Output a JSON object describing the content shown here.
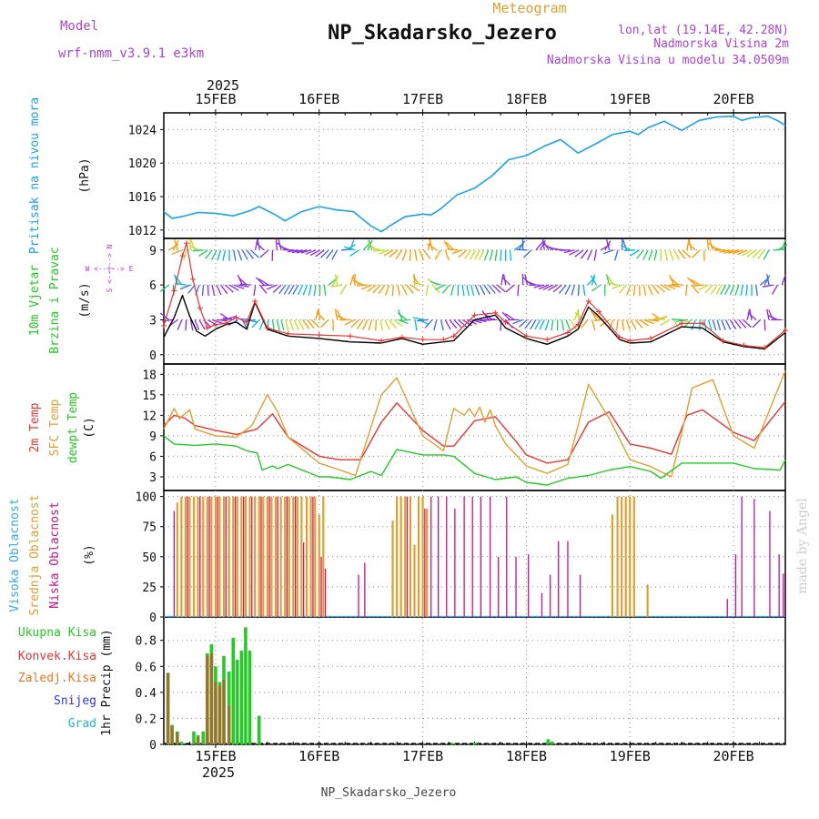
{
  "header": {
    "model_label": "Model",
    "model_name": "wrf-nmm_v3.9.1  e3km",
    "product": "Meteogram",
    "station": "NP_Skadarsko_Jezero",
    "lonlat": "lon,lat (19.14E, 42.28N)",
    "elevation": "Nadmorska Visina 2m",
    "model_elevation": "Nadmorska Visina u modelu 34.0509m",
    "footer_station": "NP_Skadarsko_Jezero",
    "watermark": "made by Angel"
  },
  "colors": {
    "pressure": "#1aa3ea",
    "wind_speed": "#000000",
    "gust": "#ee3333",
    "t2m": "#ee3333",
    "sfc": "#e0a030",
    "dewpt": "#22cc22",
    "cloud_high": "#33aaee",
    "cloud_mid": "#e0a030",
    "cloud_low": "#cc1188",
    "precip_total": "#22cc22",
    "precip_conv": "#ee3333",
    "precip_frozen": "#ee7722",
    "precip_snow": "#3333ee",
    "precip_graupel": "#22bbbb",
    "title_purple": "#aa44dd"
  },
  "chart_data": {
    "x_axis": {
      "year": "2025",
      "days": [
        "15FEB",
        "16FEB",
        "17FEB",
        "18FEB",
        "19FEB",
        "20FEB"
      ],
      "start_day": 14.5,
      "end_day": 20.5,
      "hours_step": 1
    },
    "panels": [
      {
        "id": "pressure",
        "type": "line",
        "ylabel_name": "Pritisak na nivou mora",
        "ylabel_unit": "(hPa)",
        "ylim": [
          1011,
          1026
        ],
        "ticks": [
          1012,
          1016,
          1020,
          1024
        ],
        "series": [
          {
            "name": "MSLP",
            "color_key": "pressure",
            "x": [
              14.5,
              14.58,
              14.67,
              14.83,
              15.0,
              15.17,
              15.33,
              15.42,
              15.58,
              15.67,
              15.83,
              16.0,
              16.17,
              16.33,
              16.5,
              16.6,
              16.67,
              16.83,
              17.0,
              17.08,
              17.17,
              17.33,
              17.5,
              17.67,
              17.83,
              18.0,
              18.17,
              18.33,
              18.5,
              18.67,
              18.83,
              19.0,
              19.08,
              19.17,
              19.33,
              19.5,
              19.67,
              19.83,
              20.0,
              20.08,
              20.17,
              20.33,
              20.42,
              20.5
            ],
            "values": [
              1014.2,
              1013.4,
              1013.6,
              1014.1,
              1014.0,
              1013.7,
              1014.3,
              1014.8,
              1013.8,
              1013.1,
              1014.2,
              1014.8,
              1014.4,
              1014.2,
              1012.5,
              1011.8,
              1012.4,
              1013.6,
              1013.9,
              1013.8,
              1014.5,
              1016.2,
              1017.0,
              1018.5,
              1020.4,
              1020.9,
              1022.0,
              1022.8,
              1021.2,
              1022.3,
              1023.4,
              1023.8,
              1023.4,
              1024.2,
              1025.0,
              1023.9,
              1025.1,
              1025.5,
              1025.6,
              1025.1,
              1025.4,
              1025.6,
              1025.1,
              1024.5
            ]
          }
        ]
      },
      {
        "id": "wind",
        "type": "line",
        "ylabel_name": "10m Vjetar",
        "ylabel_name2": "Brzina i Pravac",
        "ylabel_unit": "(m/s)",
        "compass": "W <--|--> E",
        "compass_ns": "S <--|--> N",
        "ylim": [
          -0.8,
          10
        ],
        "ticks": [
          0,
          3,
          6,
          9
        ],
        "series": [
          {
            "name": "Wind speed",
            "color_key": "wind_speed",
            "x": [
              14.5,
              14.6,
              14.68,
              14.75,
              14.82,
              14.9,
              15.0,
              15.1,
              15.2,
              15.3,
              15.38,
              15.5,
              15.7,
              16.0,
              16.3,
              16.6,
              16.8,
              17.0,
              17.2,
              17.3,
              17.5,
              17.7,
              17.8,
              18.0,
              18.2,
              18.4,
              18.5,
              18.6,
              18.7,
              18.9,
              19.0,
              19.2,
              19.5,
              19.7,
              19.9,
              20.1,
              20.3,
              20.5
            ],
            "values": [
              1.5,
              3.2,
              5.1,
              3.3,
              2.0,
              1.6,
              2.2,
              2.6,
              2.8,
              2.2,
              4.5,
              2.2,
              1.6,
              1.4,
              1.1,
              1.0,
              1.4,
              0.9,
              1.1,
              1.2,
              3.0,
              3.4,
              2.3,
              1.4,
              0.9,
              1.6,
              2.2,
              4.1,
              3.3,
              1.3,
              1.0,
              1.1,
              2.4,
              2.3,
              1.1,
              0.7,
              0.5,
              1.9
            ]
          },
          {
            "name": "Gust",
            "color_key": "gust",
            "x": [
              14.5,
              14.6,
              14.68,
              14.72,
              14.78,
              14.85,
              14.92,
              15.0,
              15.1,
              15.2,
              15.3,
              15.38,
              15.5,
              15.7,
              16.0,
              16.3,
              16.6,
              16.8,
              17.0,
              17.2,
              17.3,
              17.5,
              17.7,
              17.8,
              18.0,
              18.2,
              18.4,
              18.5,
              18.6,
              18.7,
              18.9,
              19.0,
              19.2,
              19.5,
              19.7,
              19.9,
              20.1,
              20.3,
              20.5
            ],
            "values": [
              2.5,
              5.5,
              8.5,
              9.6,
              6.5,
              4.0,
              2.3,
              2.6,
              2.7,
              3.2,
              2.8,
              4.6,
              2.3,
              1.8,
              1.7,
              1.6,
              1.2,
              1.5,
              1.3,
              1.3,
              1.6,
              3.4,
              3.6,
              2.8,
              1.6,
              1.3,
              1.9,
              2.6,
              4.6,
              3.7,
              1.5,
              1.2,
              1.4,
              2.7,
              2.7,
              1.2,
              0.8,
              0.6,
              2.1
            ]
          }
        ],
        "arrows": {
          "levels": [
            9,
            6,
            3
          ],
          "directions_deg": [
            45,
            70,
            110,
            200,
            250,
            80,
            95,
            135,
            160,
            185,
            200,
            210,
            215,
            220,
            230,
            240,
            250,
            260,
            270,
            280
          ]
        }
      },
      {
        "id": "temperature",
        "type": "line",
        "ylabel_name": "2m Temp",
        "ylabel_name2": "SFC Temp",
        "ylabel_name3": "dewpt Temp",
        "ylabel_unit": "(C)",
        "ylim": [
          1,
          19.5
        ],
        "ticks": [
          3,
          6,
          9,
          12,
          15,
          18
        ],
        "series": [
          {
            "name": "2m Temp",
            "color_key": "t2m",
            "x": [
              14.5,
              14.6,
              14.7,
              14.8,
              15.0,
              15.2,
              15.4,
              15.55,
              15.7,
              16.0,
              16.2,
              16.4,
              16.6,
              16.75,
              17.0,
              17.2,
              17.3,
              17.5,
              17.7,
              17.9,
              18.0,
              18.2,
              18.4,
              18.6,
              18.8,
              19.0,
              19.2,
              19.4,
              19.55,
              19.7,
              20.0,
              20.2,
              20.5
            ],
            "values": [
              10.5,
              12.0,
              11.6,
              10.5,
              9.8,
              9.2,
              10.0,
              12.2,
              8.8,
              6.0,
              5.5,
              5.5,
              11.0,
              13.8,
              9.8,
              7.5,
              7.5,
              11.2,
              11.8,
              8.2,
              6.2,
              5.0,
              5.5,
              11.0,
              12.5,
              7.8,
              7.2,
              6.3,
              12.0,
              12.8,
              9.5,
              8.3,
              14.0
            ]
          },
          {
            "name": "SFC Temp",
            "color_key": "sfc",
            "x": [
              14.5,
              14.6,
              14.65,
              14.75,
              14.8,
              15.0,
              15.2,
              15.35,
              15.5,
              15.6,
              15.7,
              16.0,
              16.2,
              16.35,
              16.6,
              16.75,
              17.0,
              17.2,
              17.3,
              17.4,
              17.45,
              17.5,
              17.55,
              17.6,
              17.65,
              17.7,
              17.8,
              18.0,
              18.2,
              18.4,
              18.5,
              18.6,
              18.8,
              19.0,
              19.2,
              19.4,
              19.6,
              19.8,
              20.0,
              20.2,
              20.5
            ],
            "values": [
              10.0,
              13.0,
              11.5,
              12.8,
              10.0,
              9.0,
              8.8,
              10.5,
              15.0,
              12.5,
              8.8,
              5.0,
              4.0,
              3.2,
              15.0,
              17.5,
              9.0,
              6.8,
              13.0,
              12.0,
              13.0,
              11.8,
              13.2,
              11.0,
              12.8,
              10.5,
              7.8,
              4.6,
              3.5,
              4.8,
              10.5,
              16.5,
              11.5,
              5.5,
              4.5,
              3.0,
              16.0,
              17.2,
              9.0,
              7.2,
              18.5
            ]
          },
          {
            "name": "Dewpoint",
            "color_key": "dewpt",
            "x": [
              14.5,
              14.6,
              14.8,
              15.0,
              15.2,
              15.3,
              15.4,
              15.45,
              15.55,
              15.6,
              15.7,
              16.0,
              16.1,
              16.3,
              16.5,
              16.6,
              16.75,
              17.0,
              17.2,
              17.3,
              17.5,
              17.7,
              17.9,
              18.0,
              18.2,
              18.4,
              18.6,
              18.8,
              19.0,
              19.2,
              19.3,
              19.5,
              19.7,
              20.0,
              20.2,
              20.45,
              20.5
            ],
            "values": [
              9.0,
              7.8,
              7.6,
              7.8,
              7.5,
              6.8,
              6.5,
              4.0,
              4.6,
              4.2,
              4.8,
              3.0,
              3.0,
              2.6,
              3.8,
              3.2,
              7.0,
              6.2,
              6.2,
              6.0,
              3.5,
              2.6,
              3.0,
              2.2,
              1.8,
              2.8,
              3.2,
              4.0,
              4.5,
              3.8,
              2.8,
              5.0,
              5.0,
              5.0,
              4.2,
              4.0,
              5.5
            ]
          }
        ]
      },
      {
        "id": "clouds",
        "type": "bar",
        "ylabel_name": "Visoka Oblacnost",
        "ylabel_name2": "Srednja Oblacnost",
        "ylabel_name3": "Niska Oblacnost",
        "ylabel_unit": "(%)",
        "ylim": [
          0,
          105
        ],
        "ticks": [
          0,
          25,
          50,
          75,
          100
        ],
        "series": [
          {
            "name": "Mid clouds",
            "color_key": "cloud_mid",
            "x": [
              14.63,
              14.67,
              14.71,
              14.75,
              14.79,
              14.83,
              14.88,
              14.92,
              14.96,
              15.0,
              15.04,
              15.08,
              15.13,
              15.17,
              15.21,
              15.25,
              15.29,
              15.33,
              15.38,
              15.42,
              15.46,
              15.5,
              15.54,
              15.58,
              15.63,
              15.67,
              15.71,
              15.75,
              15.79,
              15.83,
              15.88,
              15.92,
              15.96,
              16.0,
              16.04,
              16.71,
              16.75,
              16.79,
              16.83,
              16.88,
              16.92,
              16.96,
              17.0,
              17.04,
              18.83,
              18.88,
              18.92,
              18.96,
              19.0,
              19.04,
              19.17
            ],
            "values": [
              95,
              100,
              100,
              100,
              100,
              100,
              100,
              100,
              100,
              100,
              100,
              100,
              100,
              100,
              100,
              100,
              100,
              100,
              100,
              100,
              100,
              100,
              100,
              100,
              100,
              100,
              100,
              100,
              100,
              100,
              100,
              100,
              100,
              85,
              100,
              80,
              100,
              100,
              100,
              100,
              60,
              100,
              100,
              90,
              85,
              100,
              100,
              100,
              100,
              100,
              27
            ]
          },
          {
            "name": "Low clouds",
            "color_key": "cloud_low",
            "x": [
              14.6,
              14.73,
              14.85,
              14.94,
              15.02,
              15.1,
              15.19,
              15.27,
              15.35,
              15.44,
              15.52,
              15.6,
              15.69,
              15.77,
              15.85,
              15.94,
              16.02,
              16.06,
              16.38,
              16.44,
              16.85,
              17.02,
              17.08,
              17.15,
              17.23,
              17.31,
              17.4,
              17.48,
              17.56,
              17.65,
              17.73,
              17.81,
              17.9,
              18.02,
              18.15,
              18.23,
              18.31,
              18.4,
              18.52,
              19.94,
              20.02,
              20.08,
              20.2,
              20.35,
              20.44,
              20.48
            ],
            "values": [
              88,
              100,
              100,
              100,
              100,
              100,
              100,
              100,
              100,
              100,
              100,
              100,
              100,
              100,
              62,
              100,
              50,
              40,
              35,
              45,
              100,
              90,
              100,
              100,
              100,
              90,
              100,
              100,
              100,
              100,
              50,
              100,
              50,
              52,
              20,
              35,
              63,
              63,
              35,
              15,
              52,
              100,
              98,
              88,
              52,
              36
            ]
          },
          {
            "name": "High clouds",
            "color_key": "cloud_high",
            "x": [
              15.3,
              16.1,
              17.5,
              18.8
            ],
            "values": [
              1,
              1,
              1,
              1
            ]
          }
        ]
      },
      {
        "id": "precip",
        "type": "bar",
        "ylabel_unit": "1hr Precip (mm)",
        "legend": [
          "Ukupna Kisa",
          "Konvek.Kisa",
          "Zaledj.Kisa",
          "Snijeg",
          "Grad"
        ],
        "ylim": [
          0,
          0.98
        ],
        "ticks": [
          0,
          0.2,
          0.4,
          0.6,
          0.8
        ],
        "series": [
          {
            "name": "Ukupna Kisa",
            "color_key": "precip_total",
            "x": [
              14.54,
              14.58,
              14.63,
              14.67,
              14.79,
              14.83,
              14.88,
              14.92,
              14.96,
              15.0,
              15.04,
              15.08,
              15.13,
              15.17,
              15.21,
              15.25,
              15.29,
              15.33,
              15.42,
              17.29,
              17.5,
              18.21,
              18.25
            ],
            "values": [
              0.55,
              0.15,
              0.1,
              0.02,
              0.1,
              0.07,
              0.1,
              0.7,
              0.77,
              0.6,
              0.48,
              0.68,
              0.56,
              0.82,
              0.65,
              0.72,
              0.9,
              0.72,
              0.22,
              0.01,
              0.015,
              0.04,
              0.02
            ]
          },
          {
            "name": "Konvek.Kisa",
            "color_key": "precip_conv",
            "x": [
              14.54,
              14.58,
              14.63,
              14.83,
              14.92,
              14.96,
              15.0,
              15.04,
              15.08,
              15.13
            ],
            "values": [
              0.55,
              0.14,
              0.09,
              0.06,
              0.68,
              0.7,
              0.48,
              0.45,
              0.5,
              0.3
            ]
          }
        ]
      }
    ]
  }
}
